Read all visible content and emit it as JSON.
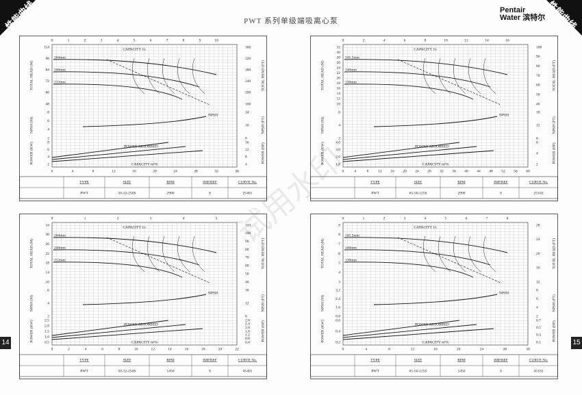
{
  "header": {
    "corner_left": "性能曲线",
    "corner_right": "性能曲线",
    "title": "PWT 系列单级端吸离心泵",
    "brand_1": "Pentair",
    "brand_2": "Water",
    "brand_cn": "滨特尔",
    "page_left": "14",
    "page_right": "15",
    "watermark": "试用水印"
  },
  "panels": [
    {
      "flow_ls_label": "CAPACITY l/s",
      "flow_m3h_label": "CAPACITY m³/h",
      "flow_ls_ticks": [
        "0",
        "1",
        "2",
        "3",
        "4",
        "5",
        "6",
        "7",
        "8",
        "9",
        "10"
      ],
      "flow_m3h_ticks": [
        "0",
        "4",
        "8",
        "12",
        "16",
        "20",
        "24",
        "28",
        "32",
        "36"
      ],
      "head_m_title": "TOTAL HEAD (M)",
      "head_ft_title": "TOTAL HEAD (FT)",
      "head_m_ticks": [
        "114",
        "96",
        "84",
        "72",
        "60",
        "48"
      ],
      "head_ft_ticks": [
        "360",
        "320",
        "280",
        "240",
        "200",
        "160"
      ],
      "npsh_m_title": "NPSH (M)",
      "npsh_ft_title": "NPSH (FT)",
      "npsh_m_ticks": [
        "8",
        "6",
        "4",
        "2"
      ],
      "npsh_ft_ticks": [
        "24",
        "16",
        "8"
      ],
      "power_kw_title": "POWER (KW)",
      "power_hp_title": "POWER (HP)",
      "power_kw_ticks": [
        "8",
        "6",
        "4",
        "2"
      ],
      "power_hp_ticks": [
        "16",
        "12",
        "8",
        "4"
      ],
      "impellers": [
        "264mm",
        "240mm",
        "212mm"
      ],
      "npsh_curve": "NPSH",
      "power_curve": "POWER ABSORBED",
      "table": {
        "headers": [
          "TYPE",
          "SIZE",
          "RPM",
          "IMP.REF",
          "CURVE No."
        ],
        "values": [
          "PWT",
          "50-32-250S",
          "2900",
          "S",
          "25401"
        ]
      }
    },
    {
      "flow_ls_label": "CAPACITY l/s",
      "flow_m3h_label": "CAPACITY m³/h",
      "flow_ls_ticks": [
        "0",
        "2",
        "4",
        "6",
        "8",
        "10",
        "12",
        "14",
        "16"
      ],
      "flow_m3h_ticks": [
        "0",
        "4",
        "8",
        "12",
        "16",
        "20",
        "24",
        "28",
        "32",
        "36",
        "40",
        "44",
        "48",
        "52",
        "56",
        "60"
      ],
      "head_m_title": "TOTAL HEAD (M)",
      "head_ft_title": "TOTAL HEAD (FT)",
      "head_m_ticks": [
        "32",
        "30",
        "28",
        "26",
        "24",
        "22",
        "20",
        "18",
        "16",
        "14",
        "12",
        "10"
      ],
      "head_ft_ticks": [
        "100",
        "90",
        "80",
        "70",
        "60",
        "50",
        "40"
      ],
      "npsh_m_title": "NPSH (M)",
      "npsh_ft_title": "NPSH (FT)",
      "npsh_m_ticks": [
        "6",
        "4",
        "2"
      ],
      "npsh_ft_ticks": [
        "18",
        "12",
        "6"
      ],
      "power_kw_title": "POWER (KW)",
      "power_hp_title": "POWER (HP)",
      "power_kw_ticks": [
        "4.0",
        "3.0",
        "2.0",
        "1.0"
      ],
      "power_hp_ticks": [
        "6",
        "4",
        "2"
      ],
      "impellers": [
        "145.5mm",
        "140mm",
        "130mm"
      ],
      "npsh_curve": "NPSH",
      "power_curve": "POWER ABSORBED",
      "table": {
        "headers": [
          "TYPE",
          "SIZE",
          "RPM",
          "IMP.REF",
          "CURVE No."
        ],
        "values": [
          "PWT",
          "65-50-125S",
          "2900",
          "S",
          "25102"
        ]
      }
    },
    {
      "flow_ls_label": "CAPACITY l/s",
      "flow_m3h_label": "CAPACITY m³/h",
      "flow_ls_ticks": [
        "0",
        "1",
        "2",
        "3",
        "4",
        "5"
      ],
      "flow_m3h_ticks": [
        "0",
        "2",
        "4",
        "6",
        "8",
        "10",
        "12",
        "14",
        "16",
        "18",
        "20",
        "22"
      ],
      "head_m_title": "TOTAL HEAD (M)",
      "head_ft_title": "TOTAL HEAD (FT)",
      "head_m_ticks": [
        "34",
        "30",
        "26",
        "22",
        "18",
        "14",
        "10"
      ],
      "head_ft_ticks": [
        "110",
        "100",
        "90",
        "80",
        "70",
        "60",
        "50",
        "40"
      ],
      "npsh_m_title": "NPSH (M)",
      "npsh_ft_title": "NPSH (FT)",
      "npsh_m_ticks": [
        "6",
        "4",
        "2"
      ],
      "npsh_ft_ticks": [
        "18",
        "12",
        "6"
      ],
      "power_kw_title": "POWER (KW)",
      "power_hp_title": "POWER (HP)",
      "power_kw_ticks": [
        "2.5",
        "2.0",
        "1.5",
        "1.0",
        "0.5"
      ],
      "power_hp_ticks": [
        "2.8",
        "2.4",
        "2.0",
        "1.6",
        "1.2",
        "0.8",
        "0.4"
      ],
      "impellers": [
        "264mm",
        "240mm",
        "212mm"
      ],
      "npsh_curve": "NPSH",
      "power_curve": "POWER ABSORBED",
      "table": {
        "headers": [
          "TYPE",
          "SIZE",
          "RPM",
          "IMP.REF",
          "CURVE No."
        ],
        "values": [
          "PWT",
          "50-32-250S",
          "1450",
          "S",
          "45401"
        ]
      }
    },
    {
      "flow_ls_label": "CAPACITY l/s",
      "flow_m3h_label": "CAPACITY m³/h",
      "flow_ls_ticks": [
        "0",
        "1",
        "2",
        "3",
        "4",
        "5",
        "6",
        "7",
        "8"
      ],
      "flow_m3h_ticks": [
        "0",
        "4",
        "8",
        "12",
        "16",
        "20",
        "24",
        "28",
        "30"
      ],
      "head_m_title": "TOTAL HEAD (M)",
      "head_ft_title": "TOTAL HEAD (FT)",
      "head_m_ticks": [
        "9",
        "8",
        "7",
        "6",
        "5",
        "4",
        "3"
      ],
      "head_ft_ticks": [
        "28",
        "24",
        "20",
        "16",
        "12"
      ],
      "npsh_m_title": "NPSH (M)",
      "npsh_ft_title": "NPSH (FT)",
      "npsh_m_ticks": [
        "3.2",
        "2.4",
        "1.6",
        "0.8"
      ],
      "npsh_ft_ticks": [
        "8",
        "6",
        "4",
        "2"
      ],
      "power_kw_title": "POWER (KW)",
      "power_hp_title": "POWER (HP)",
      "power_kw_ticks": [
        "0.6",
        "0.4",
        "0.2"
      ],
      "power_hp_ticks": [
        "0.7",
        "0.5",
        "0.3",
        "0.1"
      ],
      "impellers": [
        "145.5mm",
        "140mm",
        "130mm"
      ],
      "npsh_curve": "NPSH",
      "power_curve": "POWER ABSORBED",
      "table": {
        "headers": [
          "TYPE",
          "SIZE",
          "RPM",
          "IMP.REF",
          "CURVE No."
        ],
        "values": [
          "PWT",
          "65-50-125S",
          "1450",
          "S",
          "45102"
        ]
      }
    }
  ]
}
